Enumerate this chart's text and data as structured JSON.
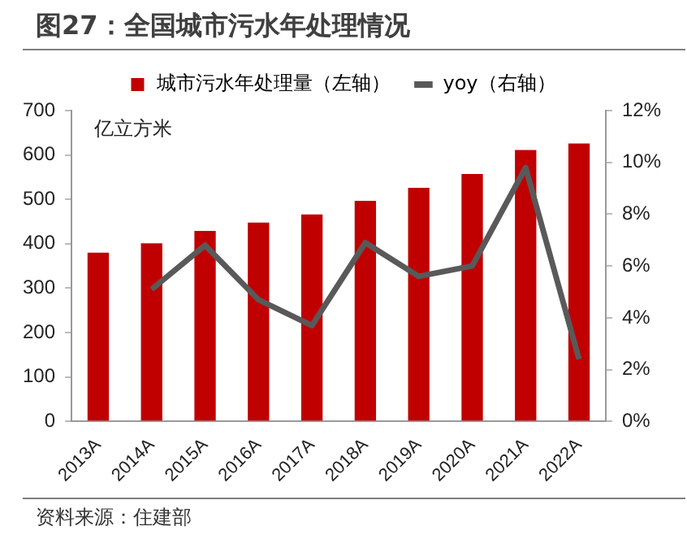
{
  "chart_data": {
    "type": "bar",
    "title": "图27：全国城市污水年处理情况",
    "ylabel": "亿立方米",
    "categories": [
      "2013A",
      "2014A",
      "2015A",
      "2016A",
      "2017A",
      "2018A",
      "2019A",
      "2020A",
      "2021A",
      "2022A"
    ],
    "series": [
      {
        "name": "城市污水年处理量（左轴）",
        "color": "#c00000",
        "values": [
          380,
          401,
          429,
          448,
          466,
          497,
          526,
          557,
          611,
          626
        ]
      },
      {
        "name": "yoy（右轴）",
        "type": "line",
        "axis": "y2",
        "color": "#595959",
        "values": [
          null,
          5.1,
          6.8,
          4.7,
          3.7,
          6.9,
          5.6,
          6.0,
          9.8,
          2.4
        ]
      }
    ],
    "ylim": [
      0,
      700
    ],
    "yticks": [
      0,
      100,
      200,
      300,
      400,
      500,
      600,
      700
    ],
    "y2lim": [
      0,
      12
    ],
    "y2ticks": [
      {
        "value": 0,
        "label": "0%"
      },
      {
        "value": 2,
        "label": "2%"
      },
      {
        "value": 4,
        "label": "4%"
      },
      {
        "value": 6,
        "label": "6%"
      },
      {
        "value": 8,
        "label": "8%"
      },
      {
        "value": 10,
        "label": "10%"
      },
      {
        "value": 12,
        "label": "12%"
      }
    ],
    "grid": false,
    "legend": "top",
    "marker": "none",
    "line_style": "solid",
    "annotations": [
      "资料来源：住建部"
    ]
  }
}
